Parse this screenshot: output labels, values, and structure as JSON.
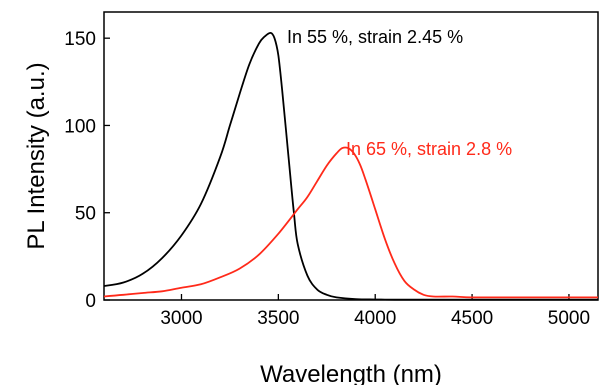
{
  "chart_data": {
    "type": "line",
    "title": "",
    "xlabel": "Wavelength (nm)",
    "ylabel": "PL Intensity (a.u.)",
    "xlim": [
      2600,
      5150
    ],
    "ylim": [
      0,
      165
    ],
    "xticks": [
      3000,
      3500,
      4000,
      4500,
      5000
    ],
    "xtick_labels": [
      "3000",
      "3500",
      "4000",
      "4500",
      "5000"
    ],
    "yticks": [
      0,
      50,
      100,
      150
    ],
    "ytick_labels": [
      "0",
      "50",
      "100",
      "150"
    ],
    "grid": false,
    "legend": "none",
    "annotations": [
      {
        "text": "In 55 %, strain 2.45 %",
        "color": "#000000",
        "series_index": 0
      },
      {
        "text": "In 65 %, strain 2.8 %",
        "color": "#ff2a1a",
        "series_index": 1
      }
    ],
    "series": [
      {
        "color": "#000000",
        "x": [
          2600,
          2700,
          2800,
          2900,
          3000,
          3100,
          3200,
          3250,
          3300,
          3350,
          3400,
          3430,
          3460,
          3480,
          3500,
          3520,
          3550,
          3580,
          3600,
          3650,
          3700,
          3750,
          3800,
          3900,
          4000,
          4100,
          4200,
          4500,
          5000,
          5150
        ],
        "y": [
          8,
          10,
          15,
          24,
          37,
          55,
          82,
          100,
          118,
          135,
          147,
          151,
          153,
          150,
          140,
          120,
          85,
          50,
          32,
          14,
          6,
          3,
          1.5,
          0.5,
          0.3,
          0.2,
          0.2,
          0.2,
          0.2,
          0.2
        ]
      },
      {
        "color": "#ff2a1a",
        "x": [
          2600,
          2700,
          2800,
          2900,
          3000,
          3100,
          3200,
          3300,
          3400,
          3500,
          3600,
          3650,
          3700,
          3750,
          3800,
          3830,
          3860,
          3890,
          3920,
          3950,
          4000,
          4050,
          4100,
          4150,
          4200,
          4250,
          4300,
          4400,
          4500,
          4700,
          5000,
          5150
        ],
        "y": [
          2,
          3,
          4,
          5,
          7,
          9,
          13,
          18,
          26,
          38,
          52,
          59,
          68,
          77,
          84,
          87,
          87,
          84,
          78,
          69,
          52,
          35,
          21,
          11,
          6,
          3,
          2,
          2,
          1.5,
          1.5,
          1.5,
          1.5
        ]
      }
    ]
  }
}
